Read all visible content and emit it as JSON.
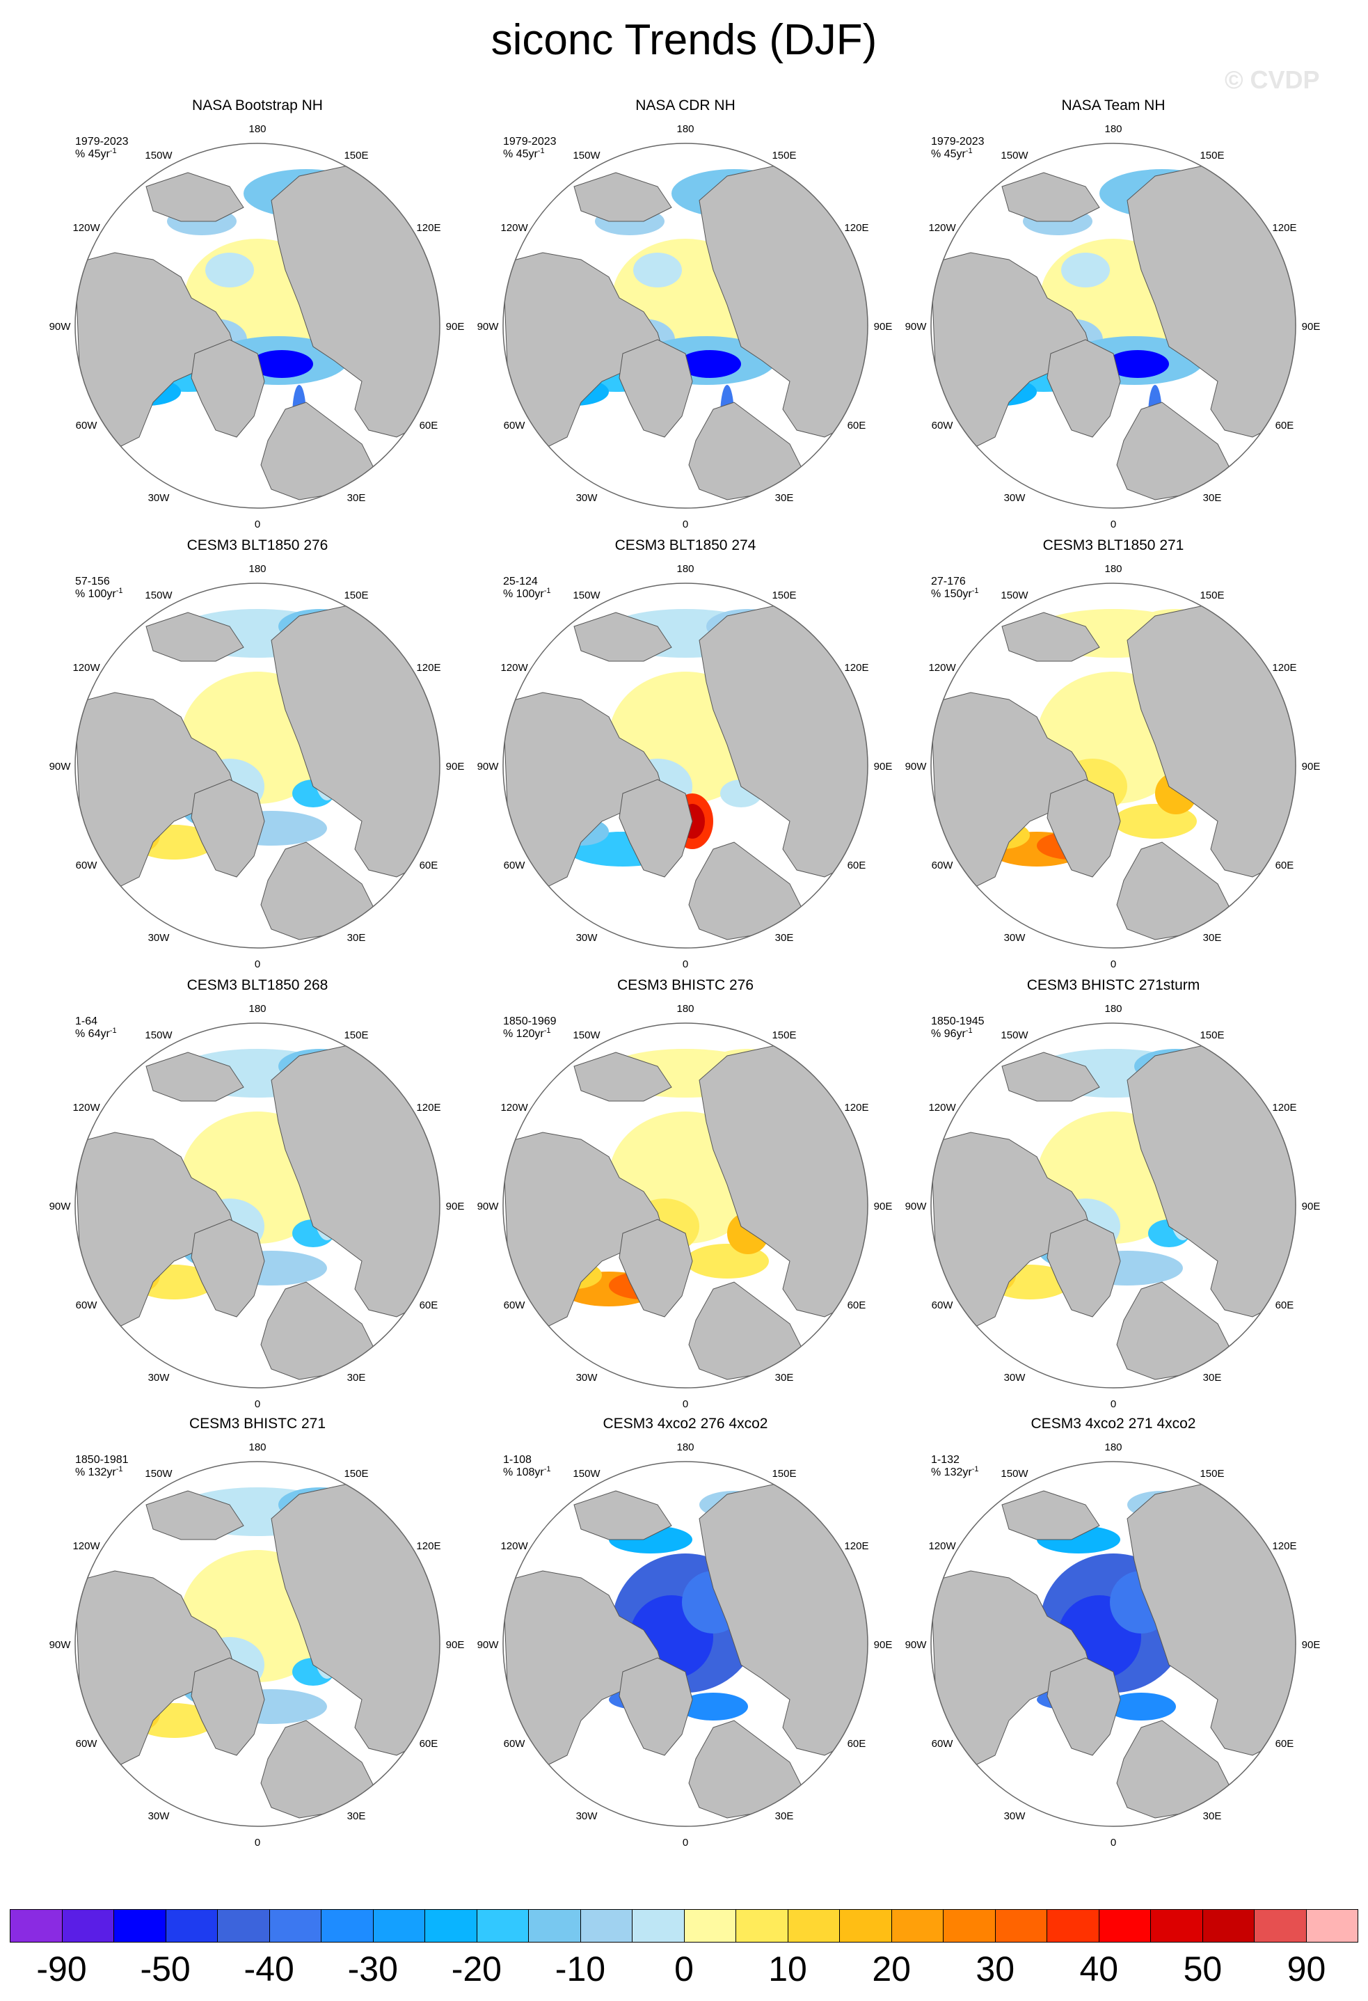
{
  "title": "siconc Trends (DJF)",
  "watermark": "© CVDP",
  "lon_labels": [
    "180",
    "150E",
    "120E",
    "90E",
    "60E",
    "30E",
    "0",
    "30W",
    "60W",
    "90W",
    "120W",
    "150W"
  ],
  "panels": [
    {
      "name": "NASA Bootstrap NH",
      "period": "1979-2023",
      "scale": "% 45yr",
      "pattern": "obs"
    },
    {
      "name": "NASA CDR NH",
      "period": "1979-2023",
      "scale": "% 45yr",
      "pattern": "obs"
    },
    {
      "name": "NASA Team NH",
      "period": "1979-2023",
      "scale": "% 45yr",
      "pattern": "obs"
    },
    {
      "name": "CESM3 BLT1850 276",
      "period": "57-156",
      "scale": "% 100yr",
      "pattern": "ctrl"
    },
    {
      "name": "CESM3 BLT1850 274",
      "period": "25-124",
      "scale": "% 100yr",
      "pattern": "ctrl_red"
    },
    {
      "name": "CESM3 BLT1850 271",
      "period": "27-176",
      "scale": "% 150yr",
      "pattern": "ctrl_orange"
    },
    {
      "name": "CESM3 BLT1850 268",
      "period": "1-64",
      "scale": "% 64yr",
      "pattern": "ctrl"
    },
    {
      "name": "CESM3 BHISTC 276",
      "period": "1850-1969",
      "scale": "% 120yr",
      "pattern": "ctrl_orange"
    },
    {
      "name": "CESM3 BHISTC 271sturm",
      "period": "1850-1945",
      "scale": "% 96yr",
      "pattern": "ctrl"
    },
    {
      "name": "CESM3 BHISTC 271",
      "period": "1850-1981",
      "scale": "% 132yr",
      "pattern": "ctrl"
    },
    {
      "name": "CESM3 4xco2 276 4xco2",
      "period": "1-108",
      "scale": "% 108yr",
      "pattern": "co2"
    },
    {
      "name": "CESM3 4xco2 271 4xco2",
      "period": "1-132",
      "scale": "% 132yr",
      "pattern": "co2"
    }
  ],
  "colorbar": {
    "colors": [
      "#8a2be2",
      "#5a1ee6",
      "#0000ff",
      "#1e3cf0",
      "#3c64dc",
      "#3c78f0",
      "#1e8cff",
      "#14a0ff",
      "#0ab4ff",
      "#32c8ff",
      "#78c8f0",
      "#a0d2f0",
      "#bee6f5",
      "#fffaa0",
      "#ffeb5a",
      "#ffd732",
      "#ffbe14",
      "#ffa00a",
      "#ff8200",
      "#ff6400",
      "#ff3200",
      "#ff0000",
      "#dc0000",
      "#c80000",
      "#e65050",
      "#ffb4b4"
    ],
    "labels": [
      "-90",
      "-50",
      "-40",
      "-30",
      "-20",
      "-10",
      "0",
      "10",
      "20",
      "30",
      "40",
      "50",
      "90"
    ]
  },
  "colors": {
    "land": "#bebebe",
    "ocean": "#ffffff",
    "outline": "#666666"
  }
}
